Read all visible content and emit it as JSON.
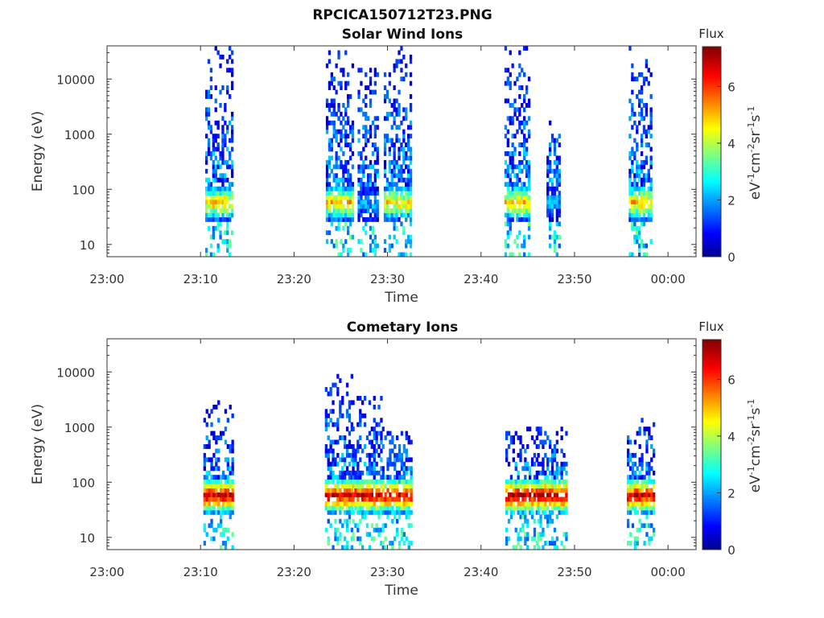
{
  "figure_title": "RPCICA150712T23.PNG",
  "chart_data": [
    {
      "type": "heatmap",
      "title": "Solar Wind Ions",
      "xlabel": "Time",
      "ylabel": "Energy (eV)",
      "x_ticks": [
        "23:00",
        "23:10",
        "23:20",
        "23:30",
        "23:40",
        "23:50",
        "00:00"
      ],
      "x_range_minutes": [
        0,
        63
      ],
      "y_scale": "log",
      "y_ticks": [
        "10",
        "100",
        "1000",
        "10000"
      ],
      "y_range": [
        6,
        40000
      ],
      "colorbar": {
        "title": "Flux",
        "label": "eV^-1cm^-2sr^-1s^-1",
        "ticks": [
          "0",
          "2",
          "4",
          "6"
        ],
        "range": [
          0,
          7.4
        ],
        "colormap": "jet"
      },
      "bursts": [
        {
          "start_min": 10.5,
          "end_min": 13.4,
          "core_flux": 5.3,
          "sparse_top_eV": 35000
        },
        {
          "start_min": 23.4,
          "end_min": 26.3,
          "core_flux": 5.3,
          "sparse_top_eV": 35000
        },
        {
          "start_min": 26.8,
          "end_min": 28.9,
          "core_flux": 2.2,
          "sparse_top_eV": 15000
        },
        {
          "start_min": 29.6,
          "end_min": 32.6,
          "core_flux": 5.0,
          "sparse_top_eV": 35000
        },
        {
          "start_min": 42.5,
          "end_min": 45.2,
          "core_flux": 5.3,
          "sparse_top_eV": 35000
        },
        {
          "start_min": 47.0,
          "end_min": 48.4,
          "core_flux": 2.3,
          "sparse_top_eV": 2000
        },
        {
          "start_min": 55.8,
          "end_min": 58.3,
          "core_flux": 5.3,
          "sparse_top_eV": 35000
        }
      ]
    },
    {
      "type": "heatmap",
      "title": "Cometary Ions",
      "xlabel": "Time",
      "ylabel": "Energy (eV)",
      "x_ticks": [
        "23:00",
        "23:10",
        "23:20",
        "23:30",
        "23:40",
        "23:50",
        "00:00"
      ],
      "x_range_minutes": [
        0,
        63
      ],
      "y_scale": "log",
      "y_ticks": [
        "10",
        "100",
        "1000",
        "10000"
      ],
      "y_range": [
        6,
        40000
      ],
      "colorbar": {
        "title": "Flux",
        "label": "eV^-1cm^-2sr^-1s^-1",
        "ticks": [
          "0",
          "2",
          "4",
          "6"
        ],
        "range": [
          0,
          7.4
        ],
        "colormap": "jet"
      },
      "bursts": [
        {
          "start_min": 10.3,
          "end_min": 13.4,
          "core_flux": 7.0,
          "sparse_top_eV": 2800
        },
        {
          "start_min": 23.3,
          "end_min": 26.1,
          "core_flux": 7.0,
          "sparse_top_eV": 8500
        },
        {
          "start_min": 26.2,
          "end_min": 29.4,
          "core_flux": 7.1,
          "sparse_top_eV": 3500
        },
        {
          "start_min": 29.4,
          "end_min": 32.6,
          "core_flux": 6.9,
          "sparse_top_eV": 1000
        },
        {
          "start_min": 42.6,
          "end_min": 45.9,
          "core_flux": 7.1,
          "sparse_top_eV": 900
        },
        {
          "start_min": 46.0,
          "end_min": 49.2,
          "core_flux": 7.2,
          "sparse_top_eV": 1000
        },
        {
          "start_min": 55.6,
          "end_min": 58.6,
          "core_flux": 7.0,
          "sparse_top_eV": 1400
        }
      ]
    }
  ]
}
